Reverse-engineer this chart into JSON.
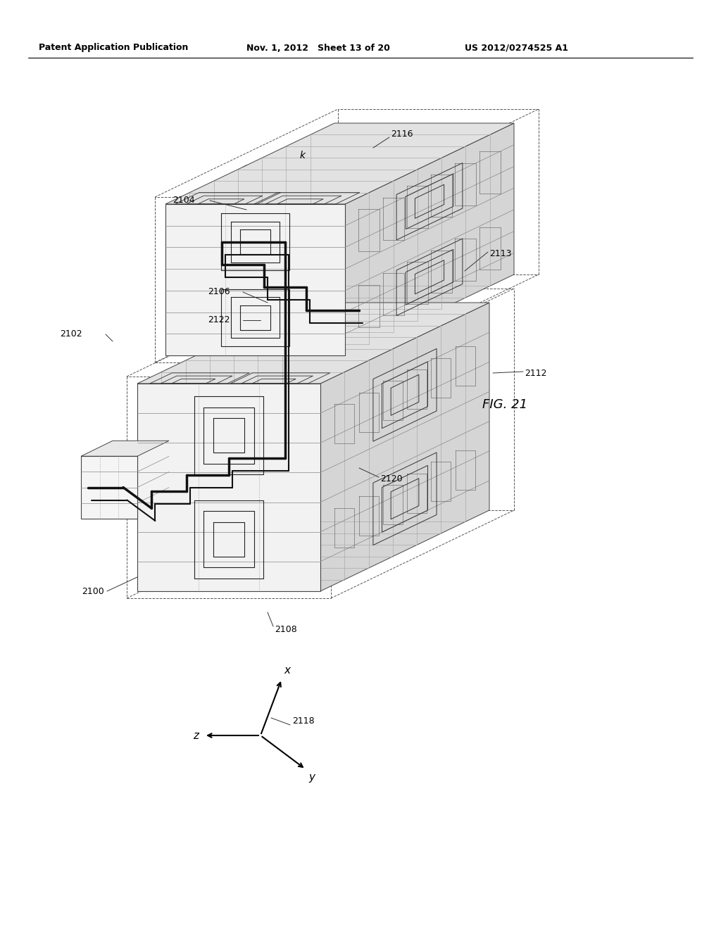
{
  "header_left": "Patent Application Publication",
  "header_mid": "Nov. 1, 2012   Sheet 13 of 20",
  "header_right": "US 2012/0274525 A1",
  "fig_label": "FIG. 21",
  "bg_color": "#ffffff",
  "line_color": "#000000",
  "slab_color_light": "#f4f4f4",
  "slab_color_mid": "#e0e0e0",
  "slab_color_dark": "#c8c8c8"
}
